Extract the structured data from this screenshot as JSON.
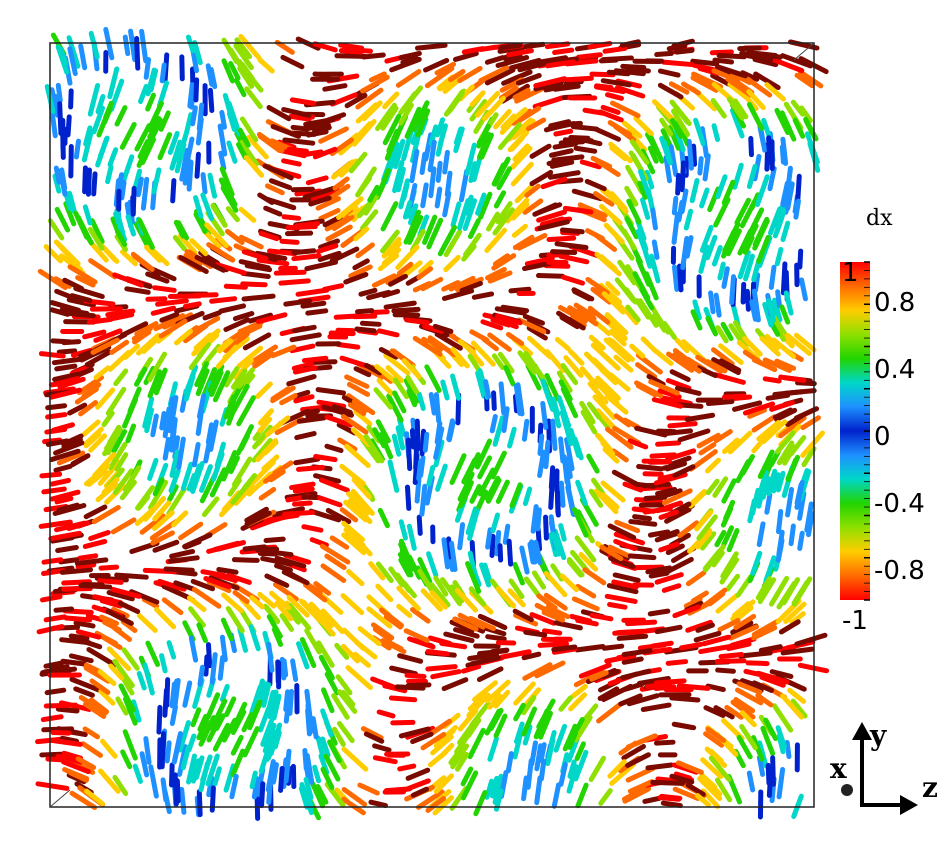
{
  "colorbar": {
    "title": "dx",
    "min": -1,
    "max": 1,
    "tick_labels": [
      "1",
      "0.8",
      "0.4",
      "0",
      "-0.4",
      "-0.8",
      "-1"
    ],
    "tick_values": [
      1,
      0.8,
      0.4,
      0,
      -0.4,
      -0.8,
      -1
    ],
    "colormap": [
      "#ff0000",
      "#ff6a00",
      "#ffcc00",
      "#8fe000",
      "#22d400",
      "#00d7c8",
      "#1e90ff",
      "#0022cc",
      "#1e90ff",
      "#00d7c8",
      "#22d400",
      "#8fe000",
      "#ffcc00",
      "#ff6a00",
      "#ff0000"
    ]
  },
  "axes": {
    "y_label": "y",
    "x_label": "x",
    "z_label": "z"
  },
  "colors": {
    "high_magnitude": "#d41a00",
    "dark_red": "#7a0a00",
    "blue": "#0a3ad8",
    "green": "#2ccf2a",
    "yellow": "#e6e000",
    "cyan": "#14c8d8"
  }
}
